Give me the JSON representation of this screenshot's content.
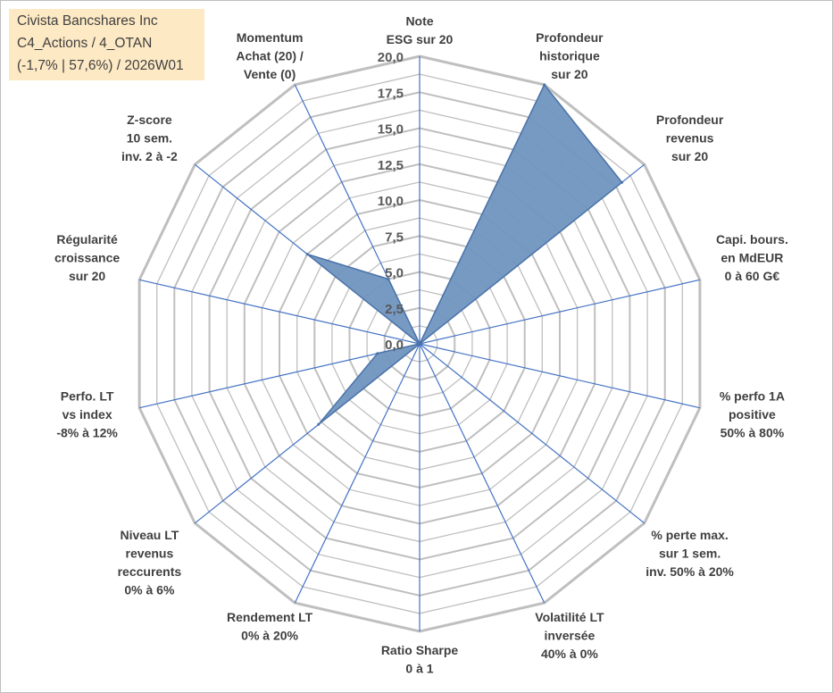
{
  "info": {
    "line1": "Civista Bancshares Inc",
    "line2": "C4_Actions / 4_OTAN",
    "line3": "(-1,7% | 57,6%) / 2026W01"
  },
  "colors": {
    "fill": "#7095c0",
    "stroke": "#4a72a8",
    "spoke": "#4472c4",
    "grid": "#bfbfbf",
    "text": "#404040"
  },
  "chart_data": {
    "type": "radar",
    "title": "",
    "rmax": 20,
    "tick_step": 2.5,
    "tick_labels": [
      "0,0",
      "2,5",
      "5,0",
      "7,5",
      "10,0",
      "12,5",
      "15,0",
      "17,5",
      "20,0"
    ],
    "axes": [
      [
        "Note",
        "ESG sur 20"
      ],
      [
        "Profondeur",
        "historique",
        "sur 20"
      ],
      [
        "Profondeur",
        "revenus",
        "sur 20"
      ],
      [
        "Capi. bours.",
        "en MdEUR",
        "0 à 60 G€"
      ],
      [
        "% perfo 1A",
        "positive",
        "50% à 80%"
      ],
      [
        "% perte max.",
        "sur 1 sem.",
        "inv. 50% à 20%"
      ],
      [
        "Volatilité LT",
        "inversée",
        "40% à 0%"
      ],
      [
        "Ratio Sharpe",
        "0 à 1"
      ],
      [
        "Rendement LT",
        "0% à 20%"
      ],
      [
        "Niveau LT",
        "revenus",
        "reccurents",
        "0% à 6%"
      ],
      [
        "Perfo. LT",
        "vs index",
        "-8% à 12%"
      ],
      [
        "Régularité",
        "croissance",
        "sur 20"
      ],
      [
        "Z-score",
        "10 sem.",
        "inv. 2 à -2"
      ],
      [
        "Momentum",
        "Achat (20) /",
        "Vente (0)"
      ]
    ],
    "values": [
      0,
      20,
      18,
      0,
      0,
      0,
      0,
      0,
      0,
      9,
      3,
      0,
      10,
      5
    ],
    "grid": true,
    "legend": "none"
  }
}
